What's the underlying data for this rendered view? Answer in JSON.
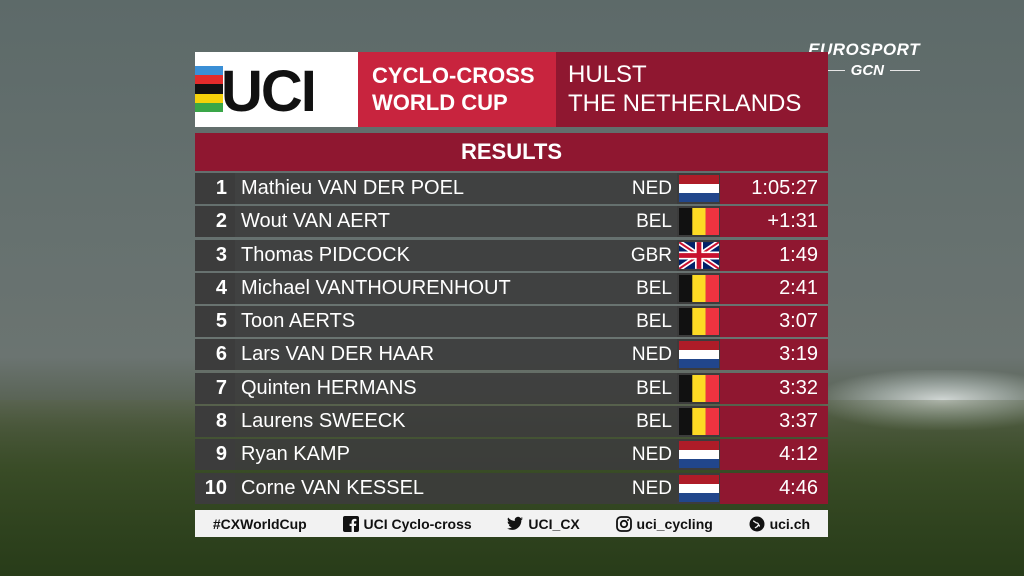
{
  "broadcaster": {
    "eurosport": "EUROSPORT",
    "gcn": "GCN"
  },
  "header": {
    "logo_text": "UCI",
    "competition_line1": "CYCLO-CROSS",
    "competition_line2": "WORLD CUP",
    "location_line1": "HULST",
    "location_line2": "THE NETHERLANDS"
  },
  "results_title": "RESULTS",
  "results": [
    {
      "pos": "1",
      "name": "Mathieu VAN DER POEL",
      "nat": "NED",
      "flag": "netherlands-flag-icon",
      "time": "1:05:27"
    },
    {
      "pos": "2",
      "name": "Wout VAN AERT",
      "nat": "BEL",
      "flag": "belgium-flag-icon",
      "time": "+1:31"
    },
    {
      "pos": "3",
      "name": "Thomas PIDCOCK",
      "nat": "GBR",
      "flag": "uk-flag-icon",
      "time": "1:49"
    },
    {
      "pos": "4",
      "name": "Michael VANTHOURENHOUT",
      "nat": "BEL",
      "flag": "belgium-flag-icon",
      "time": "2:41"
    },
    {
      "pos": "5",
      "name": "Toon AERTS",
      "nat": "BEL",
      "flag": "belgium-flag-icon",
      "time": "3:07"
    },
    {
      "pos": "6",
      "name": "Lars VAN DER HAAR",
      "nat": "NED",
      "flag": "netherlands-flag-icon",
      "time": "3:19"
    },
    {
      "pos": "7",
      "name": "Quinten HERMANS",
      "nat": "BEL",
      "flag": "belgium-flag-icon",
      "time": "3:32"
    },
    {
      "pos": "8",
      "name": "Laurens SWEECK",
      "nat": "BEL",
      "flag": "belgium-flag-icon",
      "time": "3:37"
    },
    {
      "pos": "9",
      "name": "Ryan KAMP",
      "nat": "NED",
      "flag": "netherlands-flag-icon",
      "time": "4:12"
    },
    {
      "pos": "10",
      "name": "Corne VAN KESSEL",
      "nat": "NED",
      "flag": "netherlands-flag-icon",
      "time": "4:46"
    }
  ],
  "footer": {
    "hashtag": "#CXWorldCup",
    "facebook": "UCI Cyclo-cross",
    "twitter": "UCI_CX",
    "instagram": "uci_cycling",
    "website": "uci.ch"
  },
  "colors": {
    "dark_red": "#8f1730",
    "red": "#c8243e",
    "row_bg": "#3c3c3c"
  }
}
